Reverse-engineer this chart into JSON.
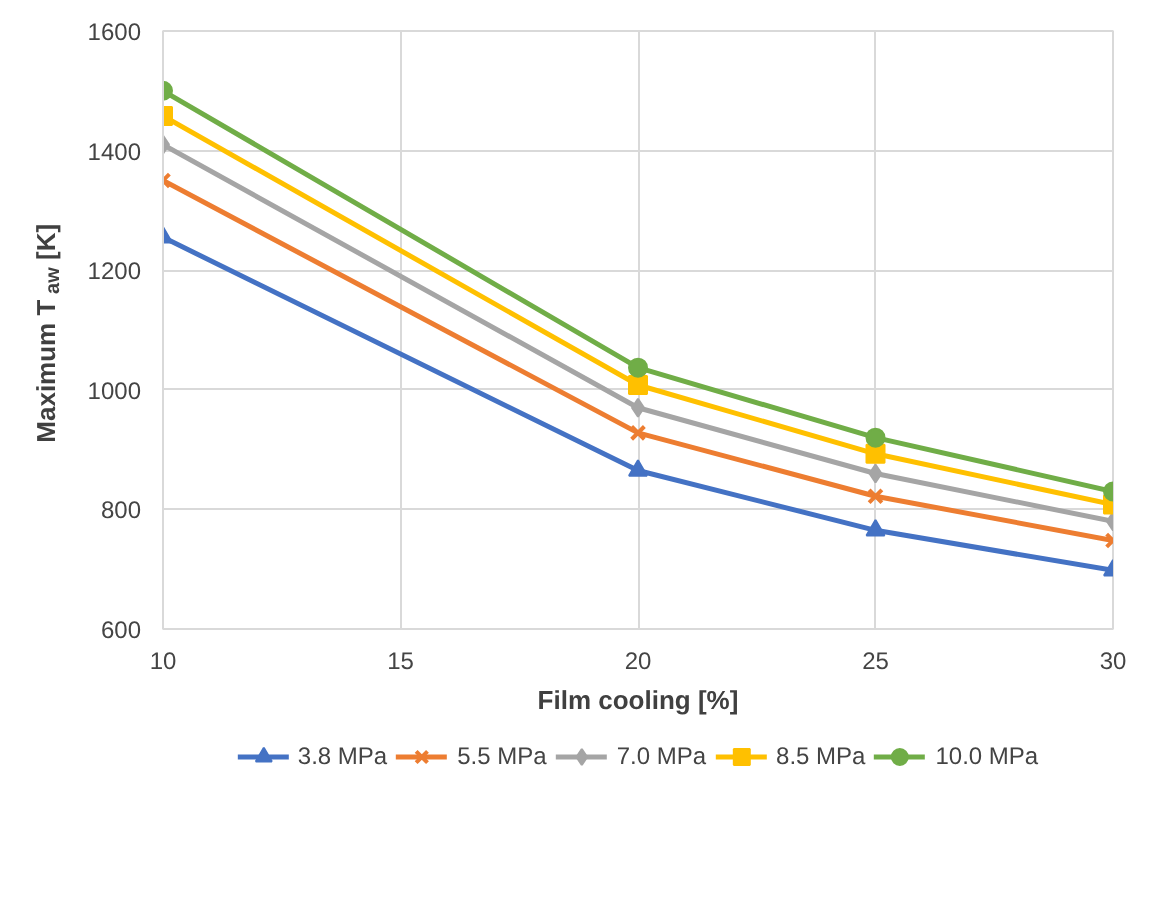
{
  "chart_data": {
    "type": "line",
    "xlabel": "Film cooling [%]",
    "ylabel": "Maximum T$_{aw}$ [K]",
    "x": [
      10,
      20,
      25,
      30
    ],
    "xlim": [
      10,
      30
    ],
    "xticks": [
      10,
      15,
      20,
      25,
      30
    ],
    "ylim": [
      600,
      1600
    ],
    "yticks": [
      600,
      800,
      1000,
      1200,
      1400,
      1600
    ],
    "grid": true,
    "legend": "bottom",
    "line_style": "solid",
    "series": [
      {
        "name": "3.8 MPa",
        "color": "#4472c4",
        "marker": "triangle",
        "values": [
          1255,
          865,
          765,
          698
        ]
      },
      {
        "name": "5.5 MPa",
        "color": "#ed7d31",
        "marker": "cross",
        "values": [
          1350,
          928,
          822,
          748
        ]
      },
      {
        "name": "7.0 MPa",
        "color": "#a5a5a5",
        "marker": "diamond",
        "values": [
          1410,
          970,
          860,
          780
        ]
      },
      {
        "name": "8.5 MPa",
        "color": "#ffc000",
        "marker": "square",
        "values": [
          1458,
          1008,
          893,
          808
        ]
      },
      {
        "name": "10.0 MPa",
        "color": "#70ad47",
        "marker": "circle",
        "values": [
          1500,
          1037,
          920,
          830
        ]
      }
    ]
  }
}
